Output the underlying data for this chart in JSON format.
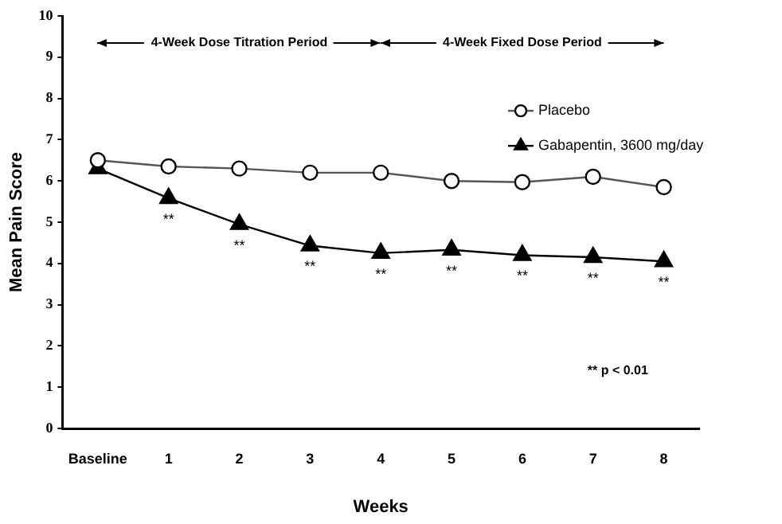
{
  "chart_data": {
    "type": "line",
    "xlabel": "Weeks",
    "ylabel": "Mean Pain Score",
    "categories": [
      "Baseline",
      "1",
      "2",
      "3",
      "4",
      "5",
      "6",
      "7",
      "8"
    ],
    "ylim": [
      0,
      10
    ],
    "yticks": [
      0,
      1,
      2,
      3,
      4,
      5,
      6,
      7,
      8,
      9,
      10
    ],
    "grid": false,
    "legend": "top right",
    "line_style": "solid",
    "series": [
      {
        "name": "Placebo",
        "color": "#000000",
        "marker": "circle",
        "values": [
          6.5,
          6.35,
          6.3,
          6.2,
          6.2,
          6.0,
          5.97,
          6.1,
          5.85
        ]
      },
      {
        "name": "Gabapentin, 3600 mg/day",
        "color": "#000000",
        "marker": "triangle",
        "values": [
          6.3,
          5.58,
          4.95,
          4.43,
          4.25,
          4.33,
          4.2,
          4.15,
          4.05
        ]
      }
    ],
    "annotations": [
      "4-Week Dose Titration Period",
      "4-Week Fixed Dose Period",
      {
        "text": "**",
        "x": "1",
        "y": 5.58
      },
      {
        "text": "**",
        "x": "2",
        "y": 4.95
      },
      {
        "text": "**",
        "x": "3",
        "y": 4.43
      },
      {
        "text": "**",
        "x": "4",
        "y": 4.25
      },
      {
        "text": "**",
        "x": "5",
        "y": 4.33
      },
      {
        "text": "**",
        "x": "6",
        "y": 4.2
      },
      {
        "text": "**",
        "x": "7",
        "y": 4.15
      },
      {
        "text": "**",
        "x": "8",
        "y": 4.05
      },
      "** p < 0.01"
    ]
  }
}
